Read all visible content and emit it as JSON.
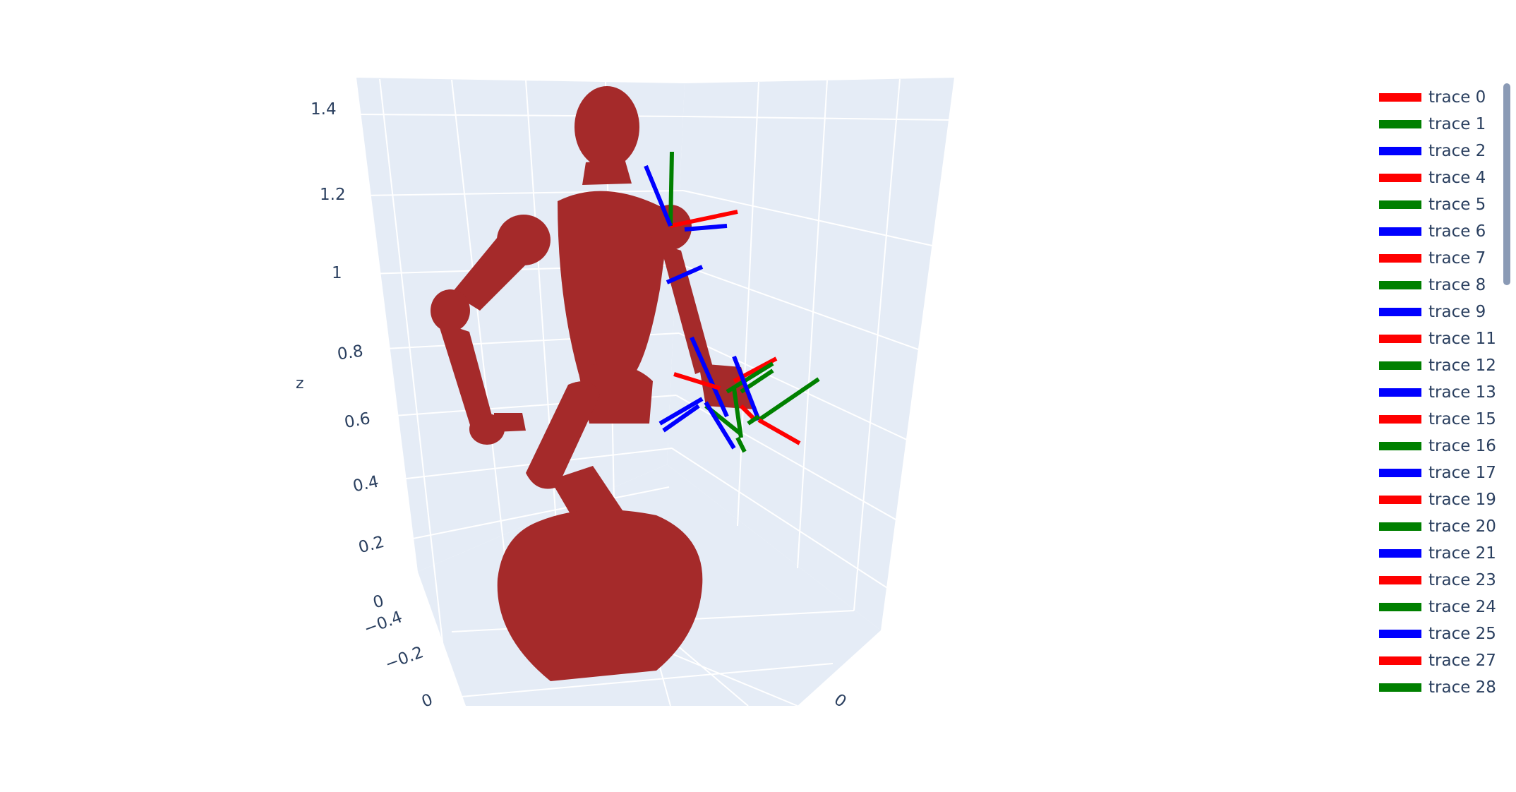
{
  "chart_data": {
    "type": "scatter3d",
    "title": "",
    "axes": {
      "z": {
        "label": "z",
        "ticks": [
          "1.4",
          "1.2",
          "1",
          "0.8",
          "0.6",
          "0.4",
          "0.2",
          "0"
        ],
        "range": [
          0,
          1.45
        ]
      },
      "x": {
        "label": "",
        "ticks": [
          "−0.4",
          "−0.2",
          "0"
        ]
      },
      "y": {
        "label": "",
        "ticks": [
          "0"
        ]
      }
    },
    "background_color": "#e5ecf6",
    "grid": true,
    "mesh": {
      "name": "robot mesh",
      "color": "#a52a2a"
    },
    "legend_position": "right",
    "series": [
      {
        "name": "trace 0",
        "color": "#ff0000"
      },
      {
        "name": "trace 1",
        "color": "#008000"
      },
      {
        "name": "trace 2",
        "color": "#0000ff"
      },
      {
        "name": "trace 4",
        "color": "#ff0000"
      },
      {
        "name": "trace 5",
        "color": "#008000"
      },
      {
        "name": "trace 6",
        "color": "#0000ff"
      },
      {
        "name": "trace 7",
        "color": "#ff0000"
      },
      {
        "name": "trace 8",
        "color": "#008000"
      },
      {
        "name": "trace 9",
        "color": "#0000ff"
      },
      {
        "name": "trace 11",
        "color": "#ff0000"
      },
      {
        "name": "trace 12",
        "color": "#008000"
      },
      {
        "name": "trace 13",
        "color": "#0000ff"
      },
      {
        "name": "trace 15",
        "color": "#ff0000"
      },
      {
        "name": "trace 16",
        "color": "#008000"
      },
      {
        "name": "trace 17",
        "color": "#0000ff"
      },
      {
        "name": "trace 19",
        "color": "#ff0000"
      },
      {
        "name": "trace 20",
        "color": "#008000"
      },
      {
        "name": "trace 21",
        "color": "#0000ff"
      },
      {
        "name": "trace 23",
        "color": "#ff0000"
      },
      {
        "name": "trace 24",
        "color": "#008000"
      },
      {
        "name": "trace 25",
        "color": "#0000ff"
      },
      {
        "name": "trace 27",
        "color": "#ff0000"
      },
      {
        "name": "trace 28",
        "color": "#008000"
      }
    ]
  }
}
